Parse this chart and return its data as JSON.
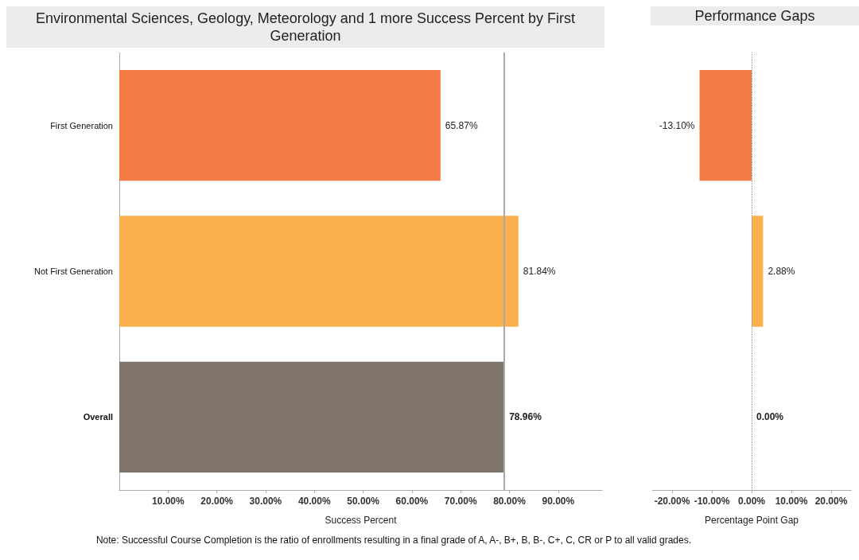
{
  "chart_data": [
    {
      "type": "bar",
      "orientation": "horizontal",
      "title": "Environmental Sciences, Geology, Meteorology and 1 more Success Percent by First Generation",
      "xlabel": "Success Percent",
      "categories": [
        "First Generation",
        "Not First Generation",
        "Overall"
      ],
      "values": [
        65.87,
        81.84,
        78.96
      ],
      "colors": [
        "#f47b43",
        "#f9b04d",
        "#7f756b"
      ],
      "value_labels": [
        "65.87%",
        "81.84%",
        "78.96%"
      ],
      "xlim": [
        0,
        99
      ],
      "xticks": [
        {
          "value": 10,
          "label": "10.00%"
        },
        {
          "value": 20,
          "label": "20.00%"
        },
        {
          "value": 30,
          "label": "30.00%"
        },
        {
          "value": 40,
          "label": "40.00%"
        },
        {
          "value": 50,
          "label": "50.00%"
        },
        {
          "value": 60,
          "label": "60.00%"
        },
        {
          "value": 70,
          "label": "70.00%"
        },
        {
          "value": 80,
          "label": "80.00%"
        },
        {
          "value": 90,
          "label": "90.00%"
        }
      ],
      "ref_lines": [
        {
          "axis": "x",
          "value": 78.96,
          "color": "#aaaaaa",
          "line_style": "solid"
        }
      ],
      "grid": false,
      "annotations": [
        "Note: Successful Course Completion is the ratio of enrollments resulting in a final grade of A, A-, B+, B, B-, C+, C, CR or P to all valid grades."
      ]
    },
    {
      "type": "bar",
      "orientation": "horizontal",
      "title": "Performance Gaps",
      "xlabel": "Percentage Point Gap",
      "categories": [
        null,
        null,
        null
      ],
      "values": [
        -13.1,
        2.88,
        0.0
      ],
      "colors": [
        "#f47b43",
        "#f9b04d",
        "#7f756b"
      ],
      "value_labels": [
        "-13.10%",
        "2.88%",
        "0.00%"
      ],
      "xlim": [
        -25,
        25
      ],
      "xticks": [
        {
          "value": -20,
          "label": "-20.00%"
        },
        {
          "value": -10,
          "label": "-10.00%"
        },
        {
          "value": 0,
          "label": "0.00%"
        },
        {
          "value": 10,
          "label": "10.00%"
        },
        {
          "value": 20,
          "label": "20.00%"
        }
      ],
      "ref_lines": [
        {
          "axis": "x",
          "value": 0,
          "color": "#999999",
          "line_style": "dotted"
        }
      ],
      "tick_labels": "x",
      "grid": false
    }
  ]
}
